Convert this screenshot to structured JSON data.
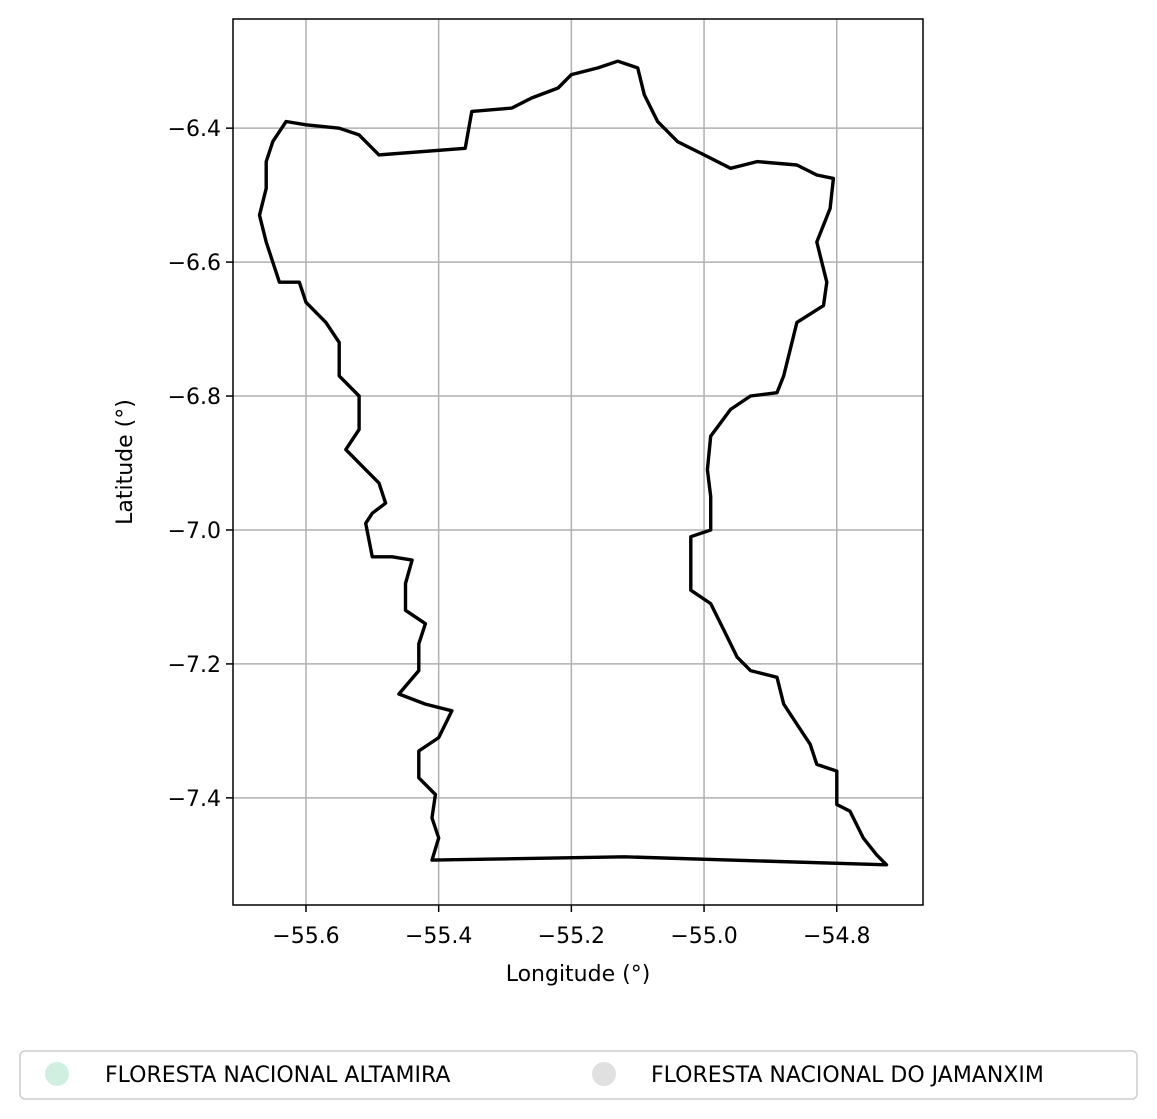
{
  "chart_data": {
    "type": "map",
    "xlabel": "Longitude (°)",
    "ylabel": "Latitude (°)",
    "xlim": [
      -55.71,
      -54.67
    ],
    "ylim": [
      -7.56,
      -6.237
    ],
    "grid": true,
    "xticks": [
      -55.6,
      -55.4,
      -55.2,
      -55.0,
      -54.8
    ],
    "yticks": [
      -6.4,
      -6.6,
      -6.8,
      -7.0,
      -7.2,
      -7.4
    ],
    "xtick_labels": [
      "−55.6",
      "−55.4",
      "−55.2",
      "−55.0",
      "−54.8"
    ],
    "ytick_labels": [
      "−6.4",
      "−6.6",
      "−6.8",
      "−7.0",
      "−7.2",
      "−7.4"
    ],
    "boundary_color": "#000000",
    "boundary": [
      [
        -55.49,
        -6.44
      ],
      [
        -55.36,
        -6.43
      ],
      [
        -55.35,
        -6.375
      ],
      [
        -55.29,
        -6.37
      ],
      [
        -55.26,
        -6.355
      ],
      [
        -55.22,
        -6.34
      ],
      [
        -55.2,
        -6.32
      ],
      [
        -55.16,
        -6.31
      ],
      [
        -55.13,
        -6.3
      ],
      [
        -55.1,
        -6.31
      ],
      [
        -55.09,
        -6.35
      ],
      [
        -55.07,
        -6.39
      ],
      [
        -55.04,
        -6.42
      ],
      [
        -55.0,
        -6.44
      ],
      [
        -54.96,
        -6.46
      ],
      [
        -54.92,
        -6.45
      ],
      [
        -54.86,
        -6.455
      ],
      [
        -54.83,
        -6.47
      ],
      [
        -54.805,
        -6.475
      ],
      [
        -54.81,
        -6.52
      ],
      [
        -54.83,
        -6.57
      ],
      [
        -54.815,
        -6.63
      ],
      [
        -54.82,
        -6.665
      ],
      [
        -54.86,
        -6.69
      ],
      [
        -54.87,
        -6.73
      ],
      [
        -54.88,
        -6.77
      ],
      [
        -54.89,
        -6.795
      ],
      [
        -54.93,
        -6.8
      ],
      [
        -54.96,
        -6.82
      ],
      [
        -54.99,
        -6.86
      ],
      [
        -54.995,
        -6.91
      ],
      [
        -54.99,
        -6.95
      ],
      [
        -54.99,
        -7.0
      ],
      [
        -55.02,
        -7.01
      ],
      [
        -55.02,
        -7.05
      ],
      [
        -55.02,
        -7.09
      ],
      [
        -54.99,
        -7.11
      ],
      [
        -54.97,
        -7.15
      ],
      [
        -54.95,
        -7.19
      ],
      [
        -54.93,
        -7.21
      ],
      [
        -54.89,
        -7.22
      ],
      [
        -54.88,
        -7.26
      ],
      [
        -54.86,
        -7.29
      ],
      [
        -54.84,
        -7.32
      ],
      [
        -54.83,
        -7.35
      ],
      [
        -54.8,
        -7.36
      ],
      [
        -54.8,
        -7.41
      ],
      [
        -54.78,
        -7.42
      ],
      [
        -54.76,
        -7.46
      ],
      [
        -54.74,
        -7.485
      ],
      [
        -54.725,
        -7.5
      ],
      [
        -55.12,
        -7.488
      ],
      [
        -55.41,
        -7.493
      ],
      [
        -55.4,
        -7.46
      ],
      [
        -55.41,
        -7.43
      ],
      [
        -55.405,
        -7.395
      ],
      [
        -55.43,
        -7.37
      ],
      [
        -55.43,
        -7.33
      ],
      [
        -55.4,
        -7.31
      ],
      [
        -55.38,
        -7.27
      ],
      [
        -55.42,
        -7.26
      ],
      [
        -55.46,
        -7.245
      ],
      [
        -55.43,
        -7.21
      ],
      [
        -55.43,
        -7.17
      ],
      [
        -55.42,
        -7.14
      ],
      [
        -55.45,
        -7.12
      ],
      [
        -55.45,
        -7.08
      ],
      [
        -55.44,
        -7.045
      ],
      [
        -55.47,
        -7.04
      ],
      [
        -55.5,
        -7.04
      ],
      [
        -55.51,
        -6.99
      ],
      [
        -55.5,
        -6.975
      ],
      [
        -55.48,
        -6.96
      ],
      [
        -55.49,
        -6.93
      ],
      [
        -55.51,
        -6.91
      ],
      [
        -55.54,
        -6.88
      ],
      [
        -55.52,
        -6.85
      ],
      [
        -55.52,
        -6.8
      ],
      [
        -55.55,
        -6.77
      ],
      [
        -55.55,
        -6.72
      ],
      [
        -55.57,
        -6.69
      ],
      [
        -55.6,
        -6.66
      ],
      [
        -55.61,
        -6.63
      ],
      [
        -55.64,
        -6.63
      ],
      [
        -55.65,
        -6.6
      ],
      [
        -55.66,
        -6.57
      ],
      [
        -55.67,
        -6.53
      ],
      [
        -55.66,
        -6.49
      ],
      [
        -55.66,
        -6.45
      ],
      [
        -55.65,
        -6.42
      ],
      [
        -55.63,
        -6.39
      ],
      [
        -55.6,
        -6.395
      ],
      [
        -55.55,
        -6.4
      ],
      [
        -55.52,
        -6.41
      ],
      [
        -55.49,
        -6.44
      ]
    ],
    "legend_placement": "bottom-center",
    "legend": [
      {
        "label": "FLORESTA NACIONAL ALTAMIRA",
        "color": "#d1efe0"
      },
      {
        "label": "FLORESTA NACIONAL DO JAMANXIM",
        "color": "#e0e0e0"
      }
    ]
  }
}
